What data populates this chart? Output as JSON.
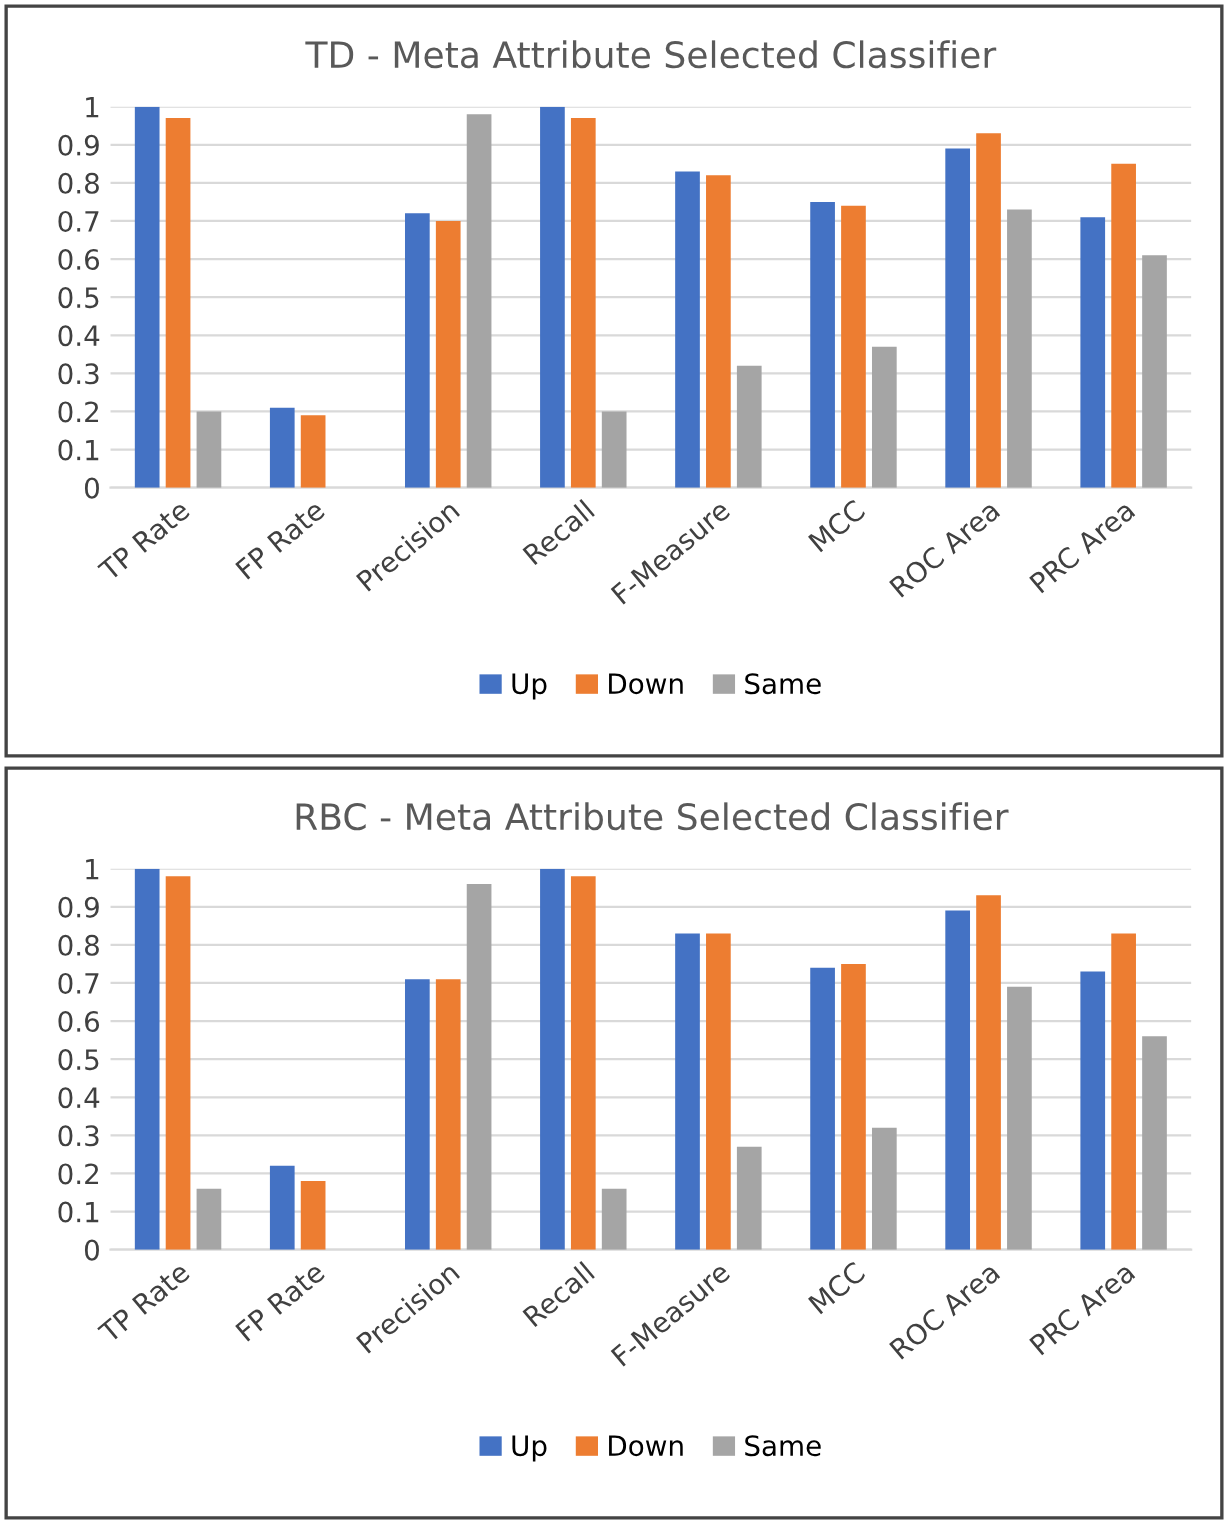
{
  "chart_data": [
    {
      "type": "bar",
      "title": "TD - Meta Attribute Selected Classifier",
      "categories": [
        "TP Rate",
        "FP Rate",
        "Precision",
        "Recall",
        "F-Measure",
        "MCC",
        "ROC Area",
        "PRC Area"
      ],
      "series": [
        {
          "name": "Up",
          "color": "#4472c4",
          "values": [
            1.0,
            0.21,
            0.72,
            1.0,
            0.83,
            0.75,
            0.89,
            0.71
          ]
        },
        {
          "name": "Down",
          "color": "#ed7d31",
          "values": [
            0.97,
            0.19,
            0.7,
            0.97,
            0.82,
            0.74,
            0.93,
            0.85
          ]
        },
        {
          "name": "Same",
          "color": "#a5a5a5",
          "values": [
            0.2,
            0,
            0.98,
            0.2,
            0.32,
            0.37,
            0.73,
            0.61
          ]
        }
      ],
      "ylim": [
        0,
        1
      ],
      "yticks": [
        0,
        0.1,
        0.2,
        0.3,
        0.4,
        0.5,
        0.6,
        0.7,
        0.8,
        0.9,
        1
      ],
      "grid": "y",
      "legend": "bottom"
    },
    {
      "type": "bar",
      "title": "RBC - Meta Attribute Selected Classifier",
      "categories": [
        "TP Rate",
        "FP Rate",
        "Precision",
        "Recall",
        "F-Measure",
        "MCC",
        "ROC Area",
        "PRC Area"
      ],
      "series": [
        {
          "name": "Up",
          "color": "#4472c4",
          "values": [
            1.0,
            0.22,
            0.71,
            1.0,
            0.83,
            0.74,
            0.89,
            0.73
          ]
        },
        {
          "name": "Down",
          "color": "#ed7d31",
          "values": [
            0.98,
            0.18,
            0.71,
            0.98,
            0.83,
            0.75,
            0.93,
            0.83
          ]
        },
        {
          "name": "Same",
          "color": "#a5a5a5",
          "values": [
            0.16,
            0,
            0.96,
            0.16,
            0.27,
            0.32,
            0.69,
            0.56
          ]
        }
      ],
      "ylim": [
        0,
        1
      ],
      "yticks": [
        0,
        0.1,
        0.2,
        0.3,
        0.4,
        0.5,
        0.6,
        0.7,
        0.8,
        0.9,
        1
      ],
      "grid": "y",
      "legend": "bottom"
    }
  ]
}
